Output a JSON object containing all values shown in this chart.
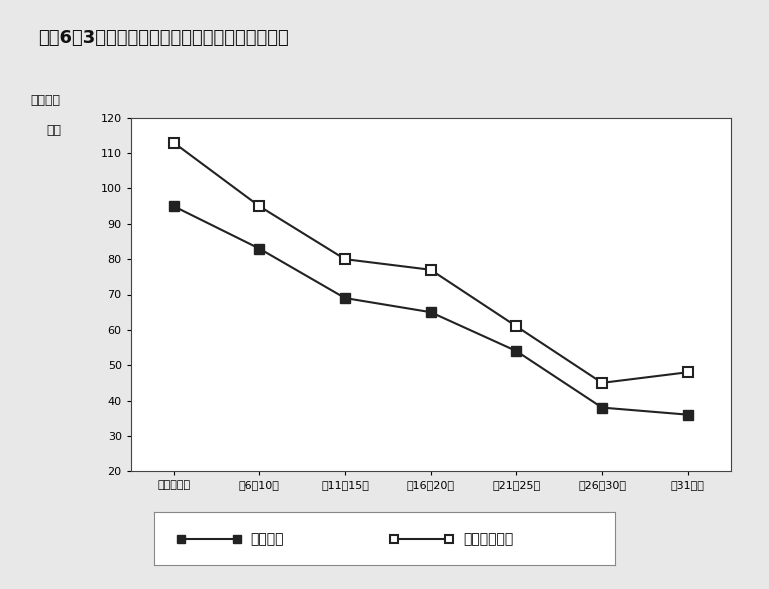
{
  "title": "図袄6－3　中古マンションの筑年帯別平均㎡単価",
  "ylabel_line1": "（万円／",
  "ylabel_line2": "㎡）",
  "xlabel_categories": [
    "筑０～５年",
    "筑6～10年",
    "筑11～15年",
    "筑16～20年",
    "筑21～25年",
    "筑26～30年",
    "筑31年～"
  ],
  "series_contract": {
    "label": "成約物件",
    "values": [
      95,
      83,
      69,
      65,
      54,
      38,
      36
    ]
  },
  "series_listing": {
    "label": "新規登録物件",
    "values": [
      113,
      95,
      80,
      77,
      61,
      45,
      48
    ]
  },
  "ylim": [
    20,
    120
  ],
  "yticks": [
    20,
    30,
    40,
    50,
    60,
    70,
    80,
    90,
    100,
    110,
    120
  ],
  "line_color": "#222222",
  "bg_color": "#e8e8e8",
  "plot_bg_color": "#ffffff",
  "outer_rect_color": "#aaaaaa",
  "title_fontsize": 13,
  "tick_fontsize": 8,
  "ylabel_fontsize": 9,
  "legend_fontsize": 10
}
